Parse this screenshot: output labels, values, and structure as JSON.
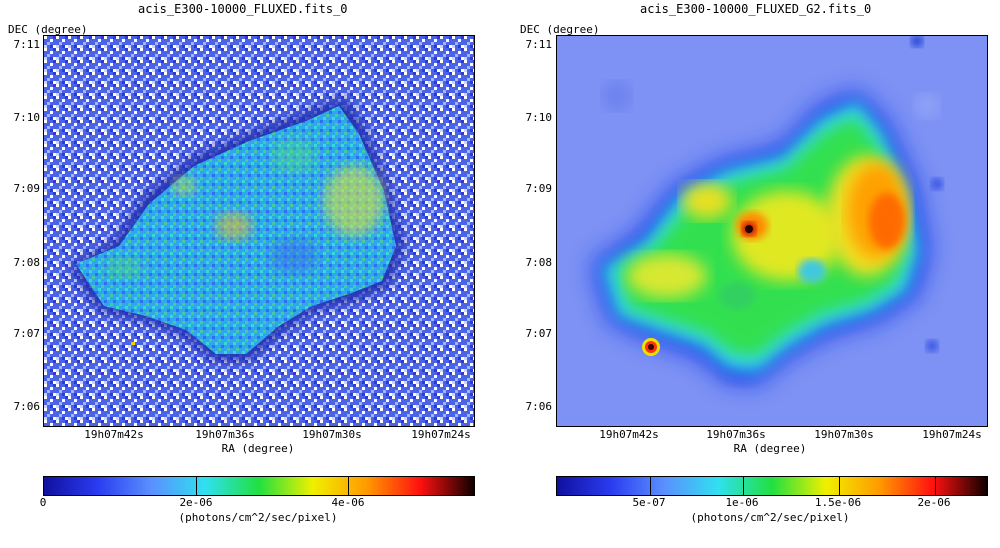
{
  "left": {
    "title": "acis_E300-10000_FLUXED.fits_0",
    "y_axis_label": "DEC (degree)",
    "x_axis_label": "RA (degree)",
    "y_ticks": [
      "7:11",
      "7:10",
      "7:09",
      "7:08",
      "7:07",
      "7:06"
    ],
    "x_ticks": [
      "19h07m42s",
      "19h07m36s",
      "19h07m30s",
      "19h07m24s"
    ],
    "colorbar_ticks": [
      "0",
      "2e-06",
      "4e-06"
    ],
    "colorbar_units": "(photons/cm^2/sec/pixel)",
    "colormap_colors": [
      "#1010a0",
      "#2a3cf0",
      "#5a90ff",
      "#30e0f0",
      "#20e040",
      "#f0f000",
      "#ff9a00",
      "#ff1010",
      "#100000"
    ]
  },
  "right": {
    "title": "acis_E300-10000_FLUXED_G2.fits_0",
    "y_axis_label": "DEC (degree)",
    "x_axis_label": "RA (degree)",
    "y_ticks": [
      "7:11",
      "7:10",
      "7:09",
      "7:08",
      "7:07",
      "7:06"
    ],
    "x_ticks": [
      "19h07m42s",
      "19h07m36s",
      "19h07m30s",
      "19h07m24s"
    ],
    "colorbar_ticks": [
      "5e-07",
      "1e-06",
      "1.5e-06",
      "2e-06"
    ],
    "colorbar_units": "(photons/cm^2/sec/pixel)",
    "colormap_colors": [
      "#1010a0",
      "#2a3cf0",
      "#5a90ff",
      "#30e0f0",
      "#20e040",
      "#f0f000",
      "#ff9a00",
      "#ff1010",
      "#100000"
    ]
  }
}
